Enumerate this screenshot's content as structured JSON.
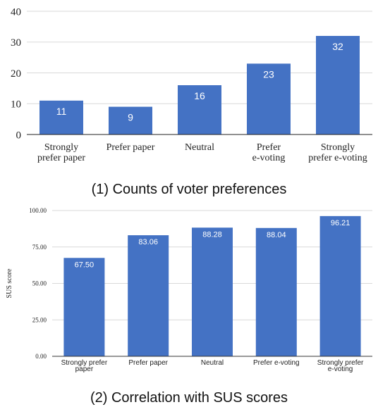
{
  "chart_data": [
    {
      "type": "bar",
      "categories": [
        [
          "Strongly",
          "prefer paper"
        ],
        [
          "Prefer paper"
        ],
        [
          "Neutral"
        ],
        [
          "Prefer",
          "e-voting"
        ],
        [
          "Strongly",
          "prefer e-voting"
        ]
      ],
      "values": [
        11,
        9,
        16,
        23,
        32
      ],
      "data_labels": [
        "11",
        "9",
        "16",
        "23",
        "32"
      ],
      "yticks": [
        "0",
        "10",
        "20",
        "30",
        "40"
      ],
      "ylim": [
        0,
        40
      ],
      "grid": true,
      "color": "#4472c4",
      "caption": "(1) Counts of voter preferences"
    },
    {
      "type": "bar",
      "categories": [
        [
          "Strongly prefer",
          "paper"
        ],
        [
          "Prefer paper"
        ],
        [
          "Neutral"
        ],
        [
          "Prefer e-voting"
        ],
        [
          "Strongly prefer",
          "e-voting"
        ]
      ],
      "values": [
        67.5,
        83.06,
        88.28,
        88.04,
        96.21
      ],
      "data_labels": [
        "67.50",
        "83.06",
        "88.28",
        "88.04",
        "96.21"
      ],
      "yticks": [
        "0.00",
        "25.00",
        "50.00",
        "75.00",
        "100.00"
      ],
      "ylim": [
        0,
        100
      ],
      "ylabel": "SUS score",
      "grid": true,
      "color": "#4472c4",
      "caption": "(2) Correlation with SUS scores"
    }
  ]
}
